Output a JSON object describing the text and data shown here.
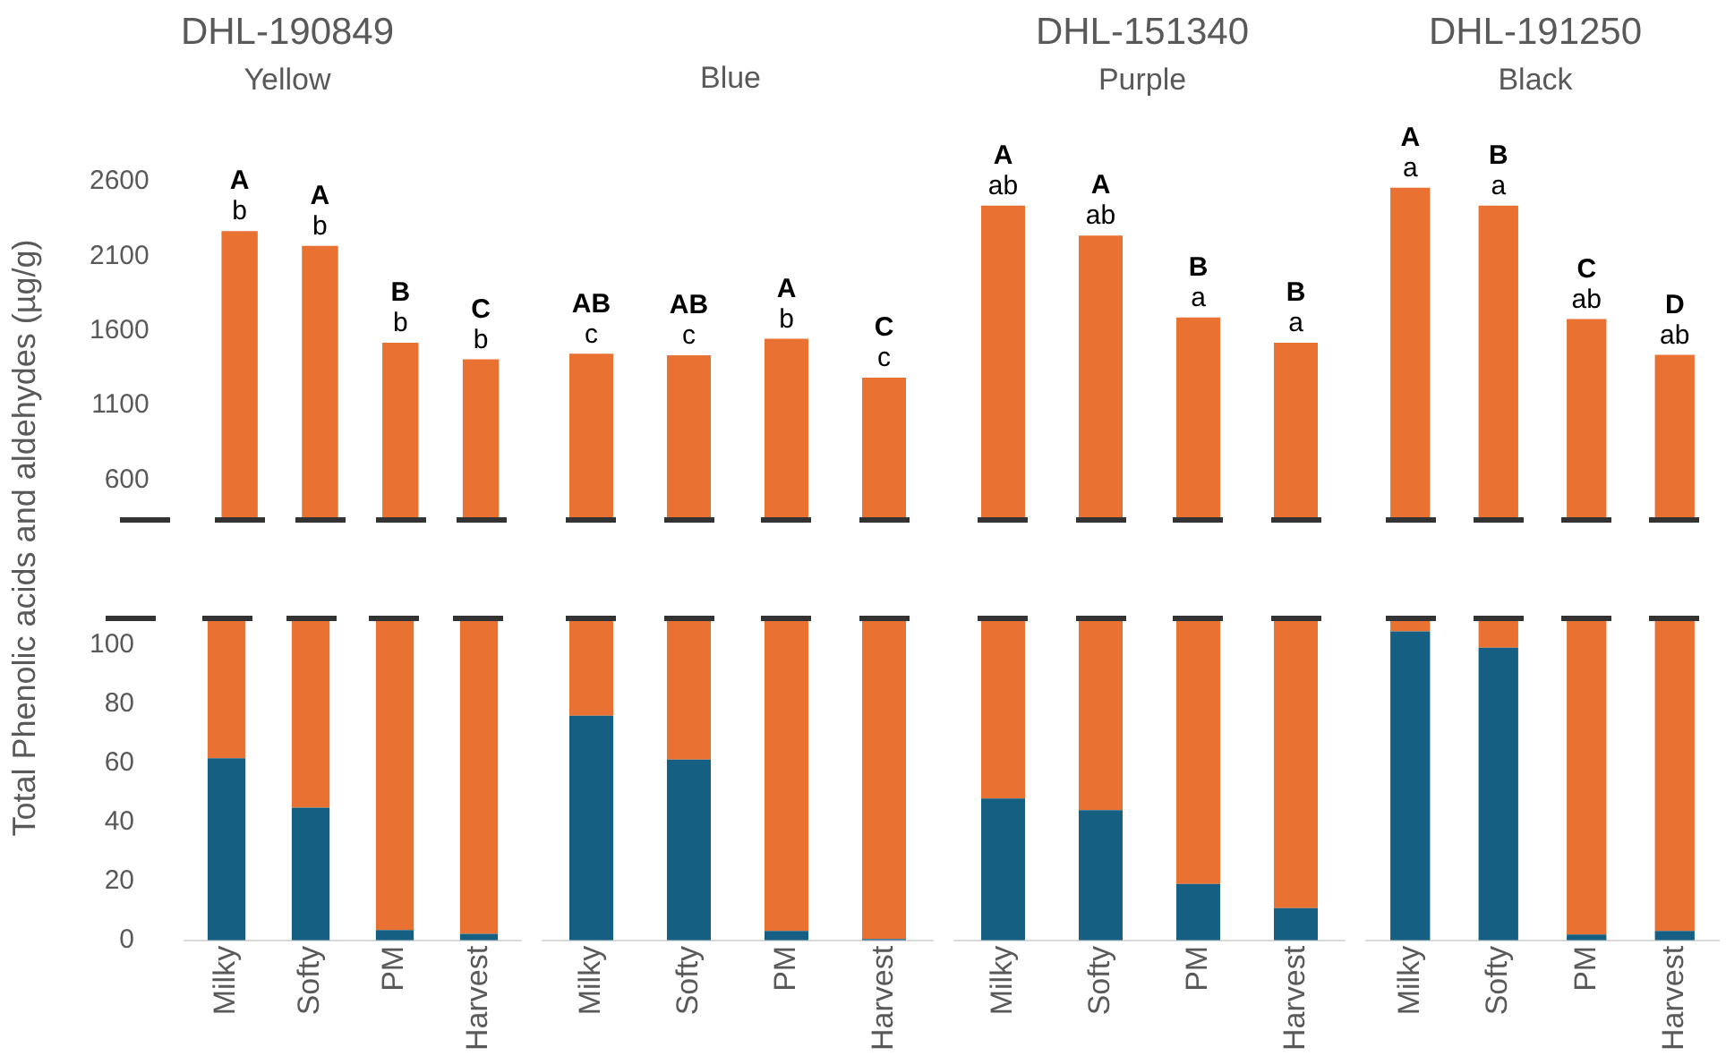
{
  "chart_data": [
    {
      "type": "bar",
      "title": "DHL-190849",
      "subtitle": "Yellow",
      "categories": [
        "Milky",
        "Softy",
        "PM",
        "Harvest"
      ],
      "series": [
        {
          "color": "#e97132",
          "values": [
            2270,
            2170,
            1520,
            1410
          ]
        }
      ],
      "ylim": [
        350,
        2600
      ],
      "yticks": [
        600,
        1100,
        1600,
        2100,
        2600
      ],
      "tick_labels": "y",
      "annotations": [
        {
          "text": "b",
          "x": "Milky",
          "y": 2270
        },
        {
          "text": "A",
          "x": "Milky",
          "y": 2270
        },
        {
          "text": "b",
          "x": "Softy",
          "y": 2170
        },
        {
          "text": "A",
          "x": "Softy",
          "y": 2170
        },
        {
          "text": "b",
          "x": "PM",
          "y": 1520
        },
        {
          "text": "B",
          "x": "PM",
          "y": 1520
        },
        {
          "text": "b",
          "x": "Harvest",
          "y": 1410
        },
        {
          "text": "C",
          "x": "Harvest",
          "y": 1410
        }
      ]
    },
    {
      "type": "bar",
      "subtitle": "Blue",
      "categories": [
        "Milky",
        "Softy",
        "PM",
        "Harvest"
      ],
      "series": [
        {
          "color": "#e97132",
          "values": [
            1440,
            1430,
            1540,
            1280
          ]
        }
      ],
      "ylim": [
        350,
        2600
      ],
      "yticks": [
        600,
        1100,
        1600,
        2100,
        2600
      ],
      "tick_labels": false,
      "annotations": [
        {
          "text": "c",
          "x": "Milky",
          "y": 1440
        },
        {
          "text": "AB",
          "x": "Milky",
          "y": 1440
        },
        {
          "text": "c",
          "x": "Softy",
          "y": 1430
        },
        {
          "text": "AB",
          "x": "Softy",
          "y": 1430
        },
        {
          "text": "b",
          "x": "PM",
          "y": 1540
        },
        {
          "text": "A",
          "x": "PM",
          "y": 1540
        },
        {
          "text": "c",
          "x": "Harvest",
          "y": 1280
        },
        {
          "text": "C",
          "x": "Harvest",
          "y": 1280
        }
      ]
    },
    {
      "type": "bar",
      "title": "DHL-151340",
      "subtitle": "Purple",
      "categories": [
        "Milky",
        "Softy",
        "PM",
        "Harvest"
      ],
      "series": [
        {
          "color": "#e97132",
          "values": [
            2440,
            2240,
            1690,
            1520
          ]
        }
      ],
      "ylim": [
        350,
        2600
      ],
      "yticks": [
        600,
        1100,
        1600,
        2100,
        2600
      ],
      "tick_labels": false,
      "annotations": [
        {
          "text": "ab",
          "x": "Milky",
          "y": 2440
        },
        {
          "text": "A",
          "x": "Milky",
          "y": 2440
        },
        {
          "text": "ab",
          "x": "Softy",
          "y": 2240
        },
        {
          "text": "A",
          "x": "Softy",
          "y": 2240
        },
        {
          "text": "a",
          "x": "PM",
          "y": 1690
        },
        {
          "text": "B",
          "x": "PM",
          "y": 1690
        },
        {
          "text": "a",
          "x": "Harvest",
          "y": 1520
        },
        {
          "text": "B",
          "x": "Harvest",
          "y": 1520
        }
      ]
    },
    {
      "type": "bar",
      "title": "DHL-191250",
      "subtitle": "Black",
      "categories": [
        "Milky",
        "Softy",
        "PM",
        "Harvest"
      ],
      "series": [
        {
          "color": "#e97132",
          "values": [
            2560,
            2440,
            1680,
            1440
          ]
        }
      ],
      "ylim": [
        350,
        2600
      ],
      "yticks": [
        600,
        1100,
        1600,
        2100,
        2600
      ],
      "tick_labels": false,
      "annotations": [
        {
          "text": "a",
          "x": "Milky",
          "y": 2560
        },
        {
          "text": "A",
          "x": "Milky",
          "y": 2560
        },
        {
          "text": "a",
          "x": "Softy",
          "y": 2440
        },
        {
          "text": "B",
          "x": "Softy",
          "y": 2440
        },
        {
          "text": "ab",
          "x": "PM",
          "y": 1680
        },
        {
          "text": "C",
          "x": "PM",
          "y": 1680
        },
        {
          "text": "ab",
          "x": "Harvest",
          "y": 1440
        },
        {
          "text": "D",
          "x": "Harvest",
          "y": 1440
        }
      ]
    },
    {
      "type": "bar",
      "stacked": true,
      "ylabel": "Total Phenolic acids and aldehydes (µg/g)",
      "categories": [
        "Milky",
        "Softy",
        "PM",
        "Harvest"
      ],
      "series": [
        {
          "color": "#156082",
          "values": [
            61.6,
            44.9,
            3.5,
            2.2
          ]
        },
        {
          "color": "#e97132",
          "values": [
            46.4,
            63.1,
            104.5,
            105.8
          ]
        }
      ],
      "ylim": [
        0,
        108
      ],
      "yticks": [
        0,
        20,
        40,
        60,
        80,
        100
      ]
    },
    {
      "type": "bar",
      "stacked": true,
      "categories": [
        "Milky",
        "Softy",
        "PM",
        "Harvest"
      ],
      "series": [
        {
          "color": "#156082",
          "values": [
            76,
            61.2,
            3.2,
            0.5
          ]
        },
        {
          "color": "#e97132",
          "values": [
            32,
            46.8,
            104.8,
            107.5
          ]
        }
      ],
      "ylim": [
        0,
        108
      ],
      "yticks": [
        0,
        20,
        40,
        60,
        80,
        100
      ],
      "tick_labels": "x"
    },
    {
      "type": "bar",
      "stacked": true,
      "categories": [
        "Milky",
        "Softy",
        "PM",
        "Harvest"
      ],
      "series": [
        {
          "color": "#156082",
          "values": [
            48,
            44.1,
            19.1,
            10.9
          ]
        },
        {
          "color": "#e97132",
          "values": [
            60,
            63.9,
            88.9,
            97.1
          ]
        }
      ],
      "ylim": [
        0,
        108
      ],
      "yticks": [
        0,
        20,
        40,
        60,
        80,
        100
      ],
      "tick_labels": "x"
    },
    {
      "type": "bar",
      "stacked": true,
      "categories": [
        "Milky",
        "Softy",
        "PM",
        "Harvest"
      ],
      "series": [
        {
          "color": "#156082",
          "values": [
            104.5,
            99,
            2,
            3.2
          ]
        },
        {
          "color": "#e97132",
          "values": [
            3.5,
            9,
            106,
            104.8
          ]
        }
      ],
      "ylim": [
        0,
        108
      ],
      "yticks": [
        0,
        20,
        40,
        60,
        80,
        100
      ],
      "tick_labels": "x"
    }
  ]
}
